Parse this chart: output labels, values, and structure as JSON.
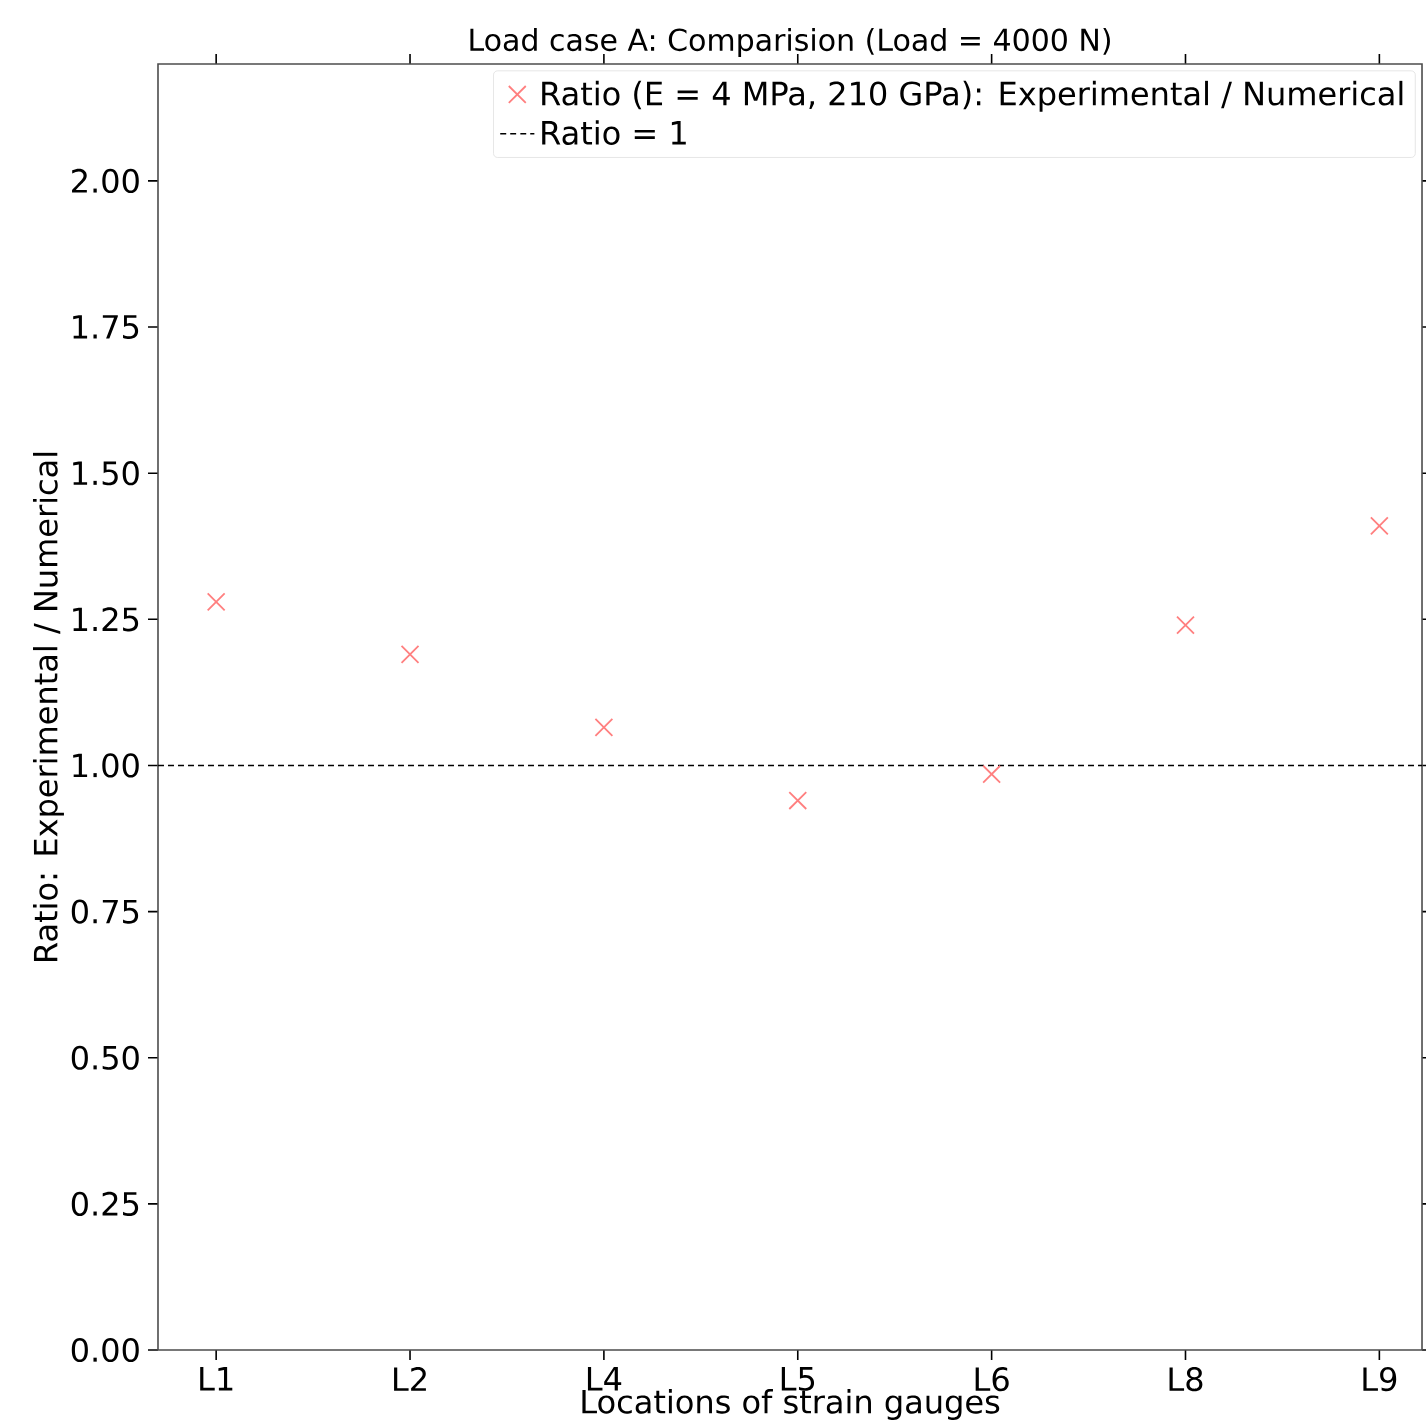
{
  "chart_data": {
    "type": "scatter",
    "title": "Load case A: Comparision (Load = 4000 N)",
    "xlabel": "Locations of strain gauges",
    "ylabel": "Ratio: Experimental / Numerical",
    "categories": [
      "L1",
      "L2",
      "L4",
      "L5",
      "L6",
      "L8",
      "L9"
    ],
    "series": [
      {
        "name": "Ratio (E = 4 MPa, 210 GPa): Experimental / Numerical",
        "color": "#ff7f7f",
        "values": [
          1.28,
          1.19,
          1.065,
          0.94,
          0.985,
          1.24,
          1.41
        ]
      }
    ],
    "marker": "cross",
    "ref_lines": [
      {
        "axis": "y",
        "value": 1,
        "label": "Ratio = 1",
        "color": "#000000",
        "line_style": "dashed"
      }
    ],
    "ylim": [
      0,
      2.2
    ],
    "yticks": [
      {
        "value": 0,
        "label": "0.00"
      },
      {
        "value": 0.25,
        "label": "0.25"
      },
      {
        "value": 0.5,
        "label": "0.50"
      },
      {
        "value": 0.75,
        "label": "0.75"
      },
      {
        "value": 1,
        "label": "1.00"
      },
      {
        "value": 1.25,
        "label": "1.25"
      },
      {
        "value": 1.5,
        "label": "1.50"
      },
      {
        "value": 1.75,
        "label": "1.75"
      },
      {
        "value": 2,
        "label": "2.00"
      }
    ],
    "legend": "top right"
  }
}
